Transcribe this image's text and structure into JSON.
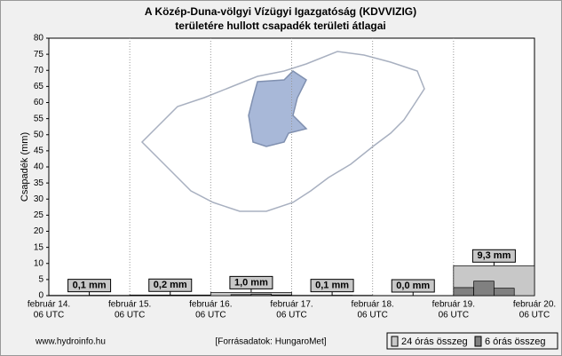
{
  "chart_data": {
    "type": "bar",
    "title": "A Közép-Duna-völgyi Vízügyi Igazgatóság (KDVVIZIG)",
    "subtitle": "területére hullott csapadék területi átlagai",
    "ylabel": "Csapadék (mm)",
    "ylim": [
      0,
      80
    ],
    "yticks": [
      0,
      5,
      10,
      15,
      20,
      25,
      30,
      35,
      40,
      45,
      50,
      55,
      60,
      65,
      70,
      75,
      80
    ],
    "grid": "x",
    "x_labels": [
      [
        "február 14.",
        "06 UTC"
      ],
      [
        "február 15.",
        "06 UTC"
      ],
      [
        "február 16.",
        "06 UTC"
      ],
      [
        "február 17.",
        "06 UTC"
      ],
      [
        "február 18.",
        "06 UTC"
      ],
      [
        "február 19.",
        "06 UTC"
      ],
      [
        "február 20.",
        "06 UTC"
      ]
    ],
    "series": [
      {
        "name": "24 órás összeg",
        "color": "#c8c8c8",
        "values": [
          0.1,
          0.2,
          1.0,
          0.1,
          0.0,
          9.3
        ],
        "value_labels": [
          "0,1 mm",
          "0,2 mm",
          "1,0 mm",
          "0,1 mm",
          "0,0 mm",
          "9,3 mm"
        ]
      },
      {
        "name": "6 órás összeg",
        "color": "#808080",
        "values": [
          0,
          0,
          0.1,
          0,
          0,
          0.1,
          0.1,
          0,
          0,
          0.3,
          0.5,
          0.2,
          0,
          0,
          0.1,
          0,
          0,
          0,
          0,
          0,
          2.5,
          4.5,
          2.3,
          0
        ]
      }
    ],
    "website": "www.hydroinfo.hu",
    "source": "[Forrásadatok: HungaroMet]"
  }
}
